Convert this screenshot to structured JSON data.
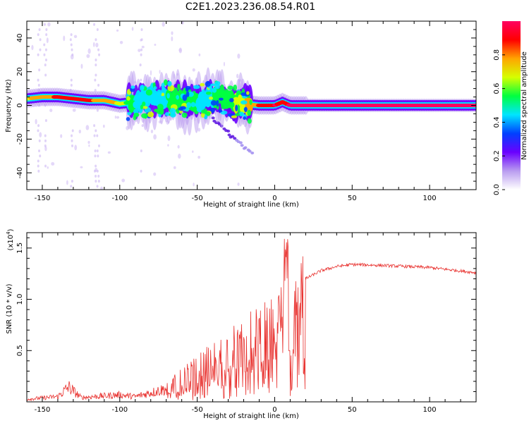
{
  "title": "C2E1.2023.236.08.54.R01",
  "chart_data": [
    {
      "type": "heatmap",
      "xlabel": "Height of straight line (km)",
      "ylabel": "Frequency (Hz)",
      "xlim": [
        -160,
        130
      ],
      "ylim": [
        -50,
        50
      ],
      "xticks": [
        -150,
        -100,
        -50,
        0,
        50,
        100
      ],
      "yticks": [
        -40,
        -20,
        0,
        20,
        40
      ],
      "colorbar": {
        "label": "Normalized spectral amplitude",
        "range": [
          0,
          1
        ],
        "ticks": [
          "0.0",
          "0.2",
          "0.4",
          "0.6",
          "0.8"
        ],
        "tick_values": [
          0,
          0.2,
          0.4,
          0.6,
          0.8
        ],
        "colormap": [
          "#ffffff",
          "#b99cf0",
          "#6a00ff",
          "#0040ff",
          "#00e5ff",
          "#00ff40",
          "#d6ff00",
          "#ffa500",
          "#ff0000",
          "#ff0060"
        ]
      },
      "ridge": {
        "x": [
          -160,
          -150,
          -140,
          -130,
          -120,
          -110,
          -100,
          -90,
          -80,
          -70,
          -60,
          -50,
          -40,
          -30,
          -20,
          -10,
          0,
          5,
          10,
          20,
          50,
          100,
          130
        ],
        "freq": [
          4,
          5,
          5,
          4,
          3,
          3,
          1,
          2,
          4,
          4,
          3,
          2,
          5,
          3,
          1,
          0,
          0,
          2,
          0,
          0,
          0,
          0,
          0
        ],
        "peak_amplitude": [
          0.7,
          0.8,
          0.85,
          0.85,
          0.85,
          0.8,
          0.7,
          0.5,
          0.5,
          0.5,
          0.55,
          0.5,
          0.5,
          0.55,
          0.7,
          0.85,
          0.95,
          0.9,
          0.95,
          1.0,
          1.0,
          1.0,
          1.0
        ]
      }
    },
    {
      "type": "line",
      "xlabel": "Height of straight line (km)",
      "ylabel": "SNR (10 * v/v)",
      "y_multiplier_label": "(x10",
      "y_multiplier_exp": "4",
      "xlim": [
        -160,
        130
      ],
      "ylim": [
        0,
        1.65
      ],
      "xticks": [
        -150,
        -100,
        -50,
        0,
        50,
        100
      ],
      "yticks": [
        0.5,
        1.0,
        1.5
      ],
      "color": "#e8312e",
      "envelope": {
        "x": [
          -160,
          -140,
          -133,
          -125,
          -100,
          -90,
          -70,
          -60,
          -50,
          -40,
          -30,
          -20,
          -10,
          0,
          5,
          8,
          9,
          15,
          20,
          30,
          40,
          50,
          70,
          100,
          130
        ],
        "y": [
          0.03,
          0.06,
          0.17,
          0.05,
          0.08,
          0.06,
          0.15,
          0.25,
          0.35,
          0.45,
          0.55,
          0.65,
          0.72,
          0.8,
          0.95,
          1.6,
          0.5,
          1.1,
          1.2,
          1.28,
          1.32,
          1.34,
          1.33,
          1.31,
          1.26
        ]
      }
    }
  ]
}
